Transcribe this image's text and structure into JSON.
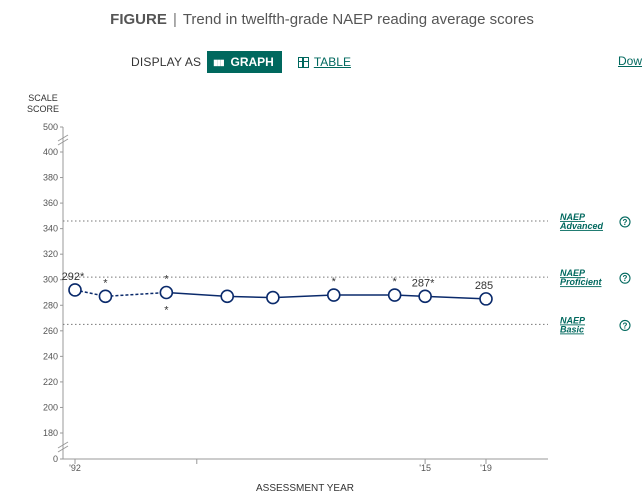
{
  "header": {
    "figure_label": "FIGURE",
    "separator": "|",
    "title": "Trend in twelfth-grade NAEP reading average scores"
  },
  "display": {
    "label": "DISPLAY AS",
    "graph_label": "GRAPH",
    "table_label": "TABLE",
    "download_label": "Dow"
  },
  "colors": {
    "accent": "#00685e",
    "series": "#0a2a6b"
  },
  "chart_data": {
    "type": "line",
    "ylabel_line1": "SCALE",
    "ylabel_line2": "SCORE",
    "xlabel": "ASSESSMENT YEAR",
    "ylim": [
      180,
      400
    ],
    "axis_break": true,
    "y_ticks": [
      0,
      180,
      200,
      220,
      240,
      260,
      280,
      300,
      320,
      340,
      360,
      380,
      400,
      500
    ],
    "x_ticks": [
      {
        "year": 1992,
        "label": "'92"
      },
      {
        "year": 2000,
        "label": ""
      },
      {
        "year": 2015,
        "label": "'15"
      },
      {
        "year": 2019,
        "label": "'19"
      }
    ],
    "x": [
      1992,
      1994,
      1998,
      2002,
      2005,
      2009,
      2013,
      2015,
      2019
    ],
    "series": [
      {
        "values": [
          292,
          287,
          290,
          287,
          286,
          288,
          288,
          287,
          285
        ],
        "data_labels": [
          "292*",
          "",
          "",
          "",
          "",
          "",
          "",
          "287*",
          "285"
        ],
        "significance_marks": [
          false,
          true,
          true,
          false,
          false,
          true,
          true,
          false,
          false
        ],
        "dashed_segments_before": [
          1998
        ]
      }
    ],
    "extra_marks": [
      {
        "x": 1998,
        "y": 290,
        "label": "*",
        "position": "below"
      }
    ],
    "achievement_levels": [
      {
        "name": "NAEP Advanced",
        "line1": "NAEP",
        "line2": "Advanced",
        "value": 346,
        "help": "?"
      },
      {
        "name": "NAEP Proficient",
        "line1": "NAEP",
        "line2": "Proficient",
        "value": 302,
        "help": "?"
      },
      {
        "name": "NAEP Basic",
        "line1": "NAEP",
        "line2": "Basic",
        "value": 265,
        "help": "?"
      }
    ]
  }
}
